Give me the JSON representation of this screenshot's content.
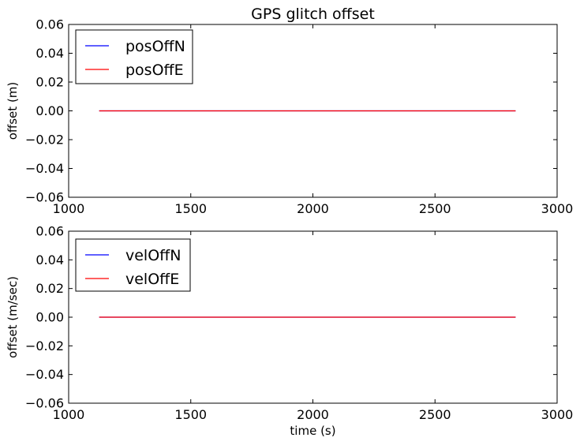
{
  "chart_data": [
    {
      "type": "line",
      "title": "GPS glitch offset",
      "xlabel": "",
      "ylabel": "offset (m)",
      "xlim": [
        1000,
        3000
      ],
      "ylim": [
        -0.06,
        0.06
      ],
      "xticks": [
        1000,
        1500,
        2000,
        2500,
        3000
      ],
      "yticks": [
        0.06,
        0.04,
        0.02,
        0.0,
        -0.02,
        -0.04,
        -0.06
      ],
      "xtick_labels": [
        "1000",
        "1500",
        "2000",
        "2500",
        "3000"
      ],
      "ytick_labels": [
        "0.06",
        "0.04",
        "0.02",
        "0.00",
        "−0.02",
        "−0.04",
        "−0.06"
      ],
      "legend_position": "top-left",
      "grid": false,
      "series": [
        {
          "name": "posOffN",
          "color": "#0000ff",
          "x": [
            1125,
            2830
          ],
          "y": [
            0,
            0
          ]
        },
        {
          "name": "posOffE",
          "color": "#ff0000",
          "x": [
            1125,
            2830
          ],
          "y": [
            0,
            0
          ]
        }
      ]
    },
    {
      "type": "line",
      "title": "",
      "xlabel": "time (s)",
      "ylabel": "offset (m/sec)",
      "xlim": [
        1000,
        3000
      ],
      "ylim": [
        -0.06,
        0.06
      ],
      "xticks": [
        1000,
        1500,
        2000,
        2500,
        3000
      ],
      "yticks": [
        0.06,
        0.04,
        0.02,
        0.0,
        -0.02,
        -0.04,
        -0.06
      ],
      "xtick_labels": [
        "1000",
        "1500",
        "2000",
        "2500",
        "3000"
      ],
      "ytick_labels": [
        "0.06",
        "0.04",
        "0.02",
        "0.00",
        "−0.02",
        "−0.04",
        "−0.06"
      ],
      "legend_position": "top-left",
      "grid": false,
      "series": [
        {
          "name": "velOffN",
          "color": "#0000ff",
          "x": [
            1125,
            2830
          ],
          "y": [
            0,
            0
          ]
        },
        {
          "name": "velOffE",
          "color": "#ff0000",
          "x": [
            1125,
            2830
          ],
          "y": [
            0,
            0
          ]
        }
      ]
    }
  ]
}
